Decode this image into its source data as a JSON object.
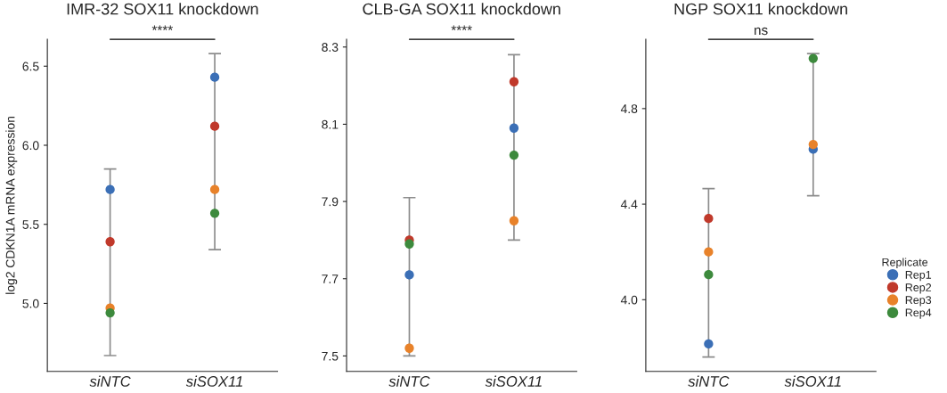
{
  "chart_data": [
    {
      "type": "scatter",
      "title": "IMR-32 SOX11 knockdown",
      "ylabel": "log2 CDKN1A mRNA expression",
      "categories": [
        "siNTC",
        "siSOX11"
      ],
      "ylim": [
        4.57,
        6.67
      ],
      "yticks": [
        {
          "value": 5.0,
          "label": "5.0"
        },
        5.5,
        {
          "value": 6.0,
          "label": "6.0"
        },
        6.5
      ],
      "grid": false,
      "legend": false,
      "marker": "circle",
      "annotations": [
        "****"
      ],
      "series": [
        {
          "color": "#3b6fb6",
          "values": [
            5.72,
            6.43
          ],
          "errors": [
            [
              4.67,
              5.85
            ],
            [
              5.34,
              6.58
            ]
          ]
        },
        {
          "color": "#c0392b",
          "values": [
            5.39,
            6.12
          ]
        },
        {
          "color": "#e8822a",
          "values": [
            4.97,
            5.72
          ]
        },
        {
          "color": "#3d8a3d",
          "values": [
            4.94,
            5.57
          ]
        }
      ]
    },
    {
      "type": "scatter",
      "title": "CLB-GA SOX11 knockdown",
      "categories": [
        "siNTC",
        "siSOX11"
      ],
      "ylim": [
        7.46,
        8.32
      ],
      "yticks": [
        7.5,
        7.7,
        7.9,
        8.1,
        8.3
      ],
      "grid": false,
      "legend": false,
      "marker": "circle",
      "annotations": [
        "****"
      ],
      "series": [
        {
          "color": "#3b6fb6",
          "values": [
            7.71,
            8.09
          ],
          "errors": [
            [
              7.5,
              7.91
            ],
            [
              7.8,
              8.28
            ]
          ]
        },
        {
          "color": "#c0392b",
          "values": [
            7.8,
            8.21
          ]
        },
        {
          "color": "#e8822a",
          "values": [
            7.52,
            7.85
          ]
        },
        {
          "color": "#3d8a3d",
          "values": [
            7.79,
            8.02
          ]
        }
      ]
    },
    {
      "type": "scatter",
      "title": "NGP SOX11 knockdown",
      "categories": [
        "siNTC",
        "siSOX11"
      ],
      "ylim": [
        3.7,
        5.09
      ],
      "yticks": [
        {
          "value": 4.0,
          "label": "4.0"
        },
        4.4,
        4.8
      ],
      "grid": false,
      "legend": "right",
      "legend_title": "Replicate",
      "marker": "circle",
      "annotations": [
        "ns"
      ],
      "series": [
        {
          "name": "Rep1",
          "color": "#3b6fb6",
          "values": [
            3.815,
            4.63
          ],
          "errors": [
            [
              3.76,
              4.465
            ],
            [
              4.435,
              5.03
            ]
          ]
        },
        {
          "name": "Rep2",
          "color": "#c0392b",
          "values": [
            4.34,
            null
          ]
        },
        {
          "name": "Rep3",
          "color": "#e8822a",
          "values": [
            4.2,
            4.65
          ]
        },
        {
          "name": "Rep4",
          "color": "#3d8a3d",
          "values": [
            4.105,
            5.01
          ]
        }
      ]
    }
  ]
}
